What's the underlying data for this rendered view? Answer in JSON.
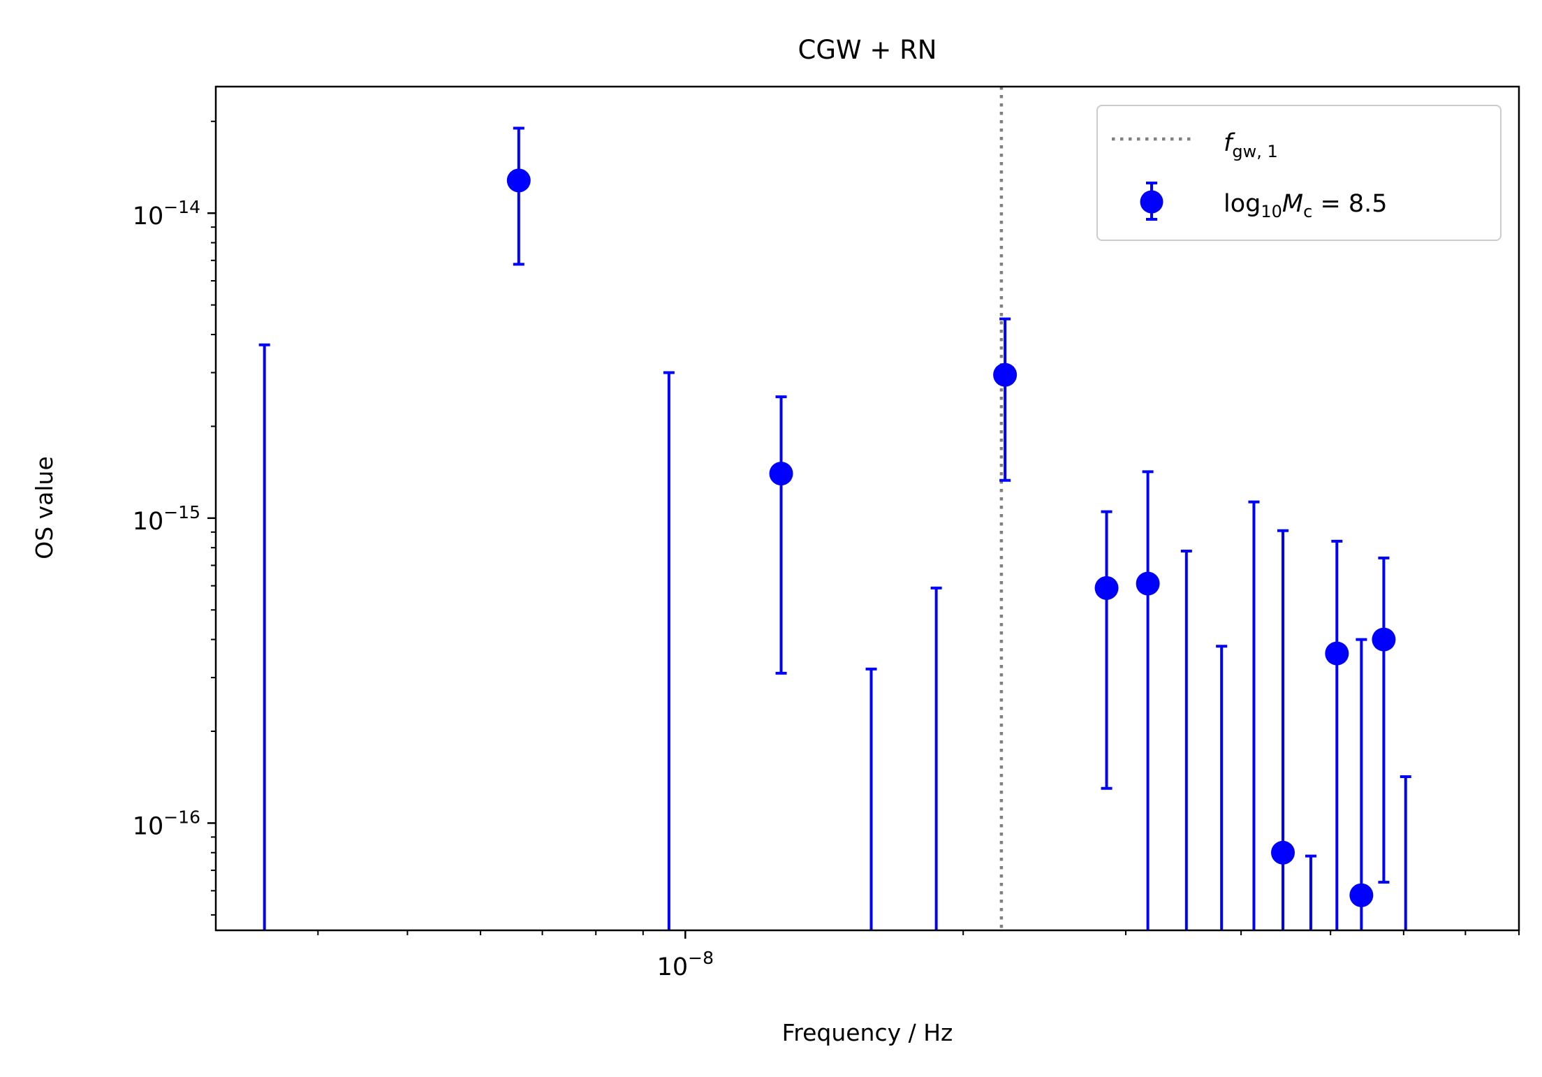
{
  "chart_data": {
    "type": "scatter",
    "title": "CGW + RN",
    "xlabel": "Frequency / Hz",
    "ylabel": "OS value",
    "xscale": "log",
    "yscale": "log",
    "xlim": [
      3.1e-09,
      8e-08
    ],
    "ylim": [
      4.45e-17,
      2.6e-14
    ],
    "grid": false,
    "legend_position": "upper right",
    "x_tick_labels": [
      {
        "value": 1e-08,
        "base": "10",
        "exp": "−8"
      }
    ],
    "y_tick_labels": [
      {
        "value": 1e-16,
        "base": "10",
        "exp": "−16"
      },
      {
        "value": 1e-15,
        "base": "10",
        "exp": "−15"
      },
      {
        "value": 1e-14,
        "base": "10",
        "exp": "−14"
      }
    ],
    "vertical_line": {
      "x": 2.2e-08,
      "style": "dotted",
      "color": "#808080",
      "legend_label": "f_gw,1"
    },
    "legend": {
      "line_label_main": "f",
      "line_label_sub": "gw, 1",
      "series_label_pre": "log",
      "series_label_sub": "10",
      "series_label_mid": "M",
      "series_label_sub2": "c",
      "series_label_post": " = 8.5"
    },
    "series": [
      {
        "color": "#0000ff",
        "points": [
          {
            "x": 3.5e-09,
            "y": null,
            "lo": null,
            "hi": 3.7e-15
          },
          {
            "x": 6.6e-09,
            "y": 1.28e-14,
            "lo": 6.8e-15,
            "hi": 1.9e-14
          },
          {
            "x": 9.6e-09,
            "y": null,
            "lo": null,
            "hi": 3e-15
          },
          {
            "x": 1.27e-08,
            "y": 1.4e-15,
            "lo": 3.1e-16,
            "hi": 2.5e-15
          },
          {
            "x": 1.59e-08,
            "y": null,
            "lo": null,
            "hi": 3.2e-16
          },
          {
            "x": 1.87e-08,
            "y": null,
            "lo": null,
            "hi": 5.9e-16
          },
          {
            "x": 2.22e-08,
            "y": 2.95e-15,
            "lo": 1.33e-15,
            "hi": 4.5e-15
          },
          {
            "x": 2.86e-08,
            "y": 5.9e-16,
            "lo": 1.3e-16,
            "hi": 1.05e-15
          },
          {
            "x": 3.17e-08,
            "y": 6.1e-16,
            "lo": null,
            "hi": 1.42e-15
          },
          {
            "x": 3.49e-08,
            "y": null,
            "lo": null,
            "hi": 7.8e-16
          },
          {
            "x": 3.81e-08,
            "y": null,
            "lo": null,
            "hi": 3.8e-16
          },
          {
            "x": 4.13e-08,
            "y": null,
            "lo": null,
            "hi": 1.13e-15
          },
          {
            "x": 4.44e-08,
            "y": 8e-17,
            "lo": null,
            "hi": 9.1e-16
          },
          {
            "x": 4.76e-08,
            "y": null,
            "lo": null,
            "hi": 7.8e-17
          },
          {
            "x": 5.08e-08,
            "y": 3.6e-16,
            "lo": null,
            "hi": 8.4e-16
          },
          {
            "x": 5.4e-08,
            "y": 5.8e-17,
            "lo": null,
            "hi": 4e-16
          },
          {
            "x": 5.71e-08,
            "y": 4e-16,
            "lo": 6.4e-17,
            "hi": 7.4e-16
          },
          {
            "x": 6.03e-08,
            "y": null,
            "lo": null,
            "hi": 1.42e-16
          }
        ]
      }
    ]
  }
}
